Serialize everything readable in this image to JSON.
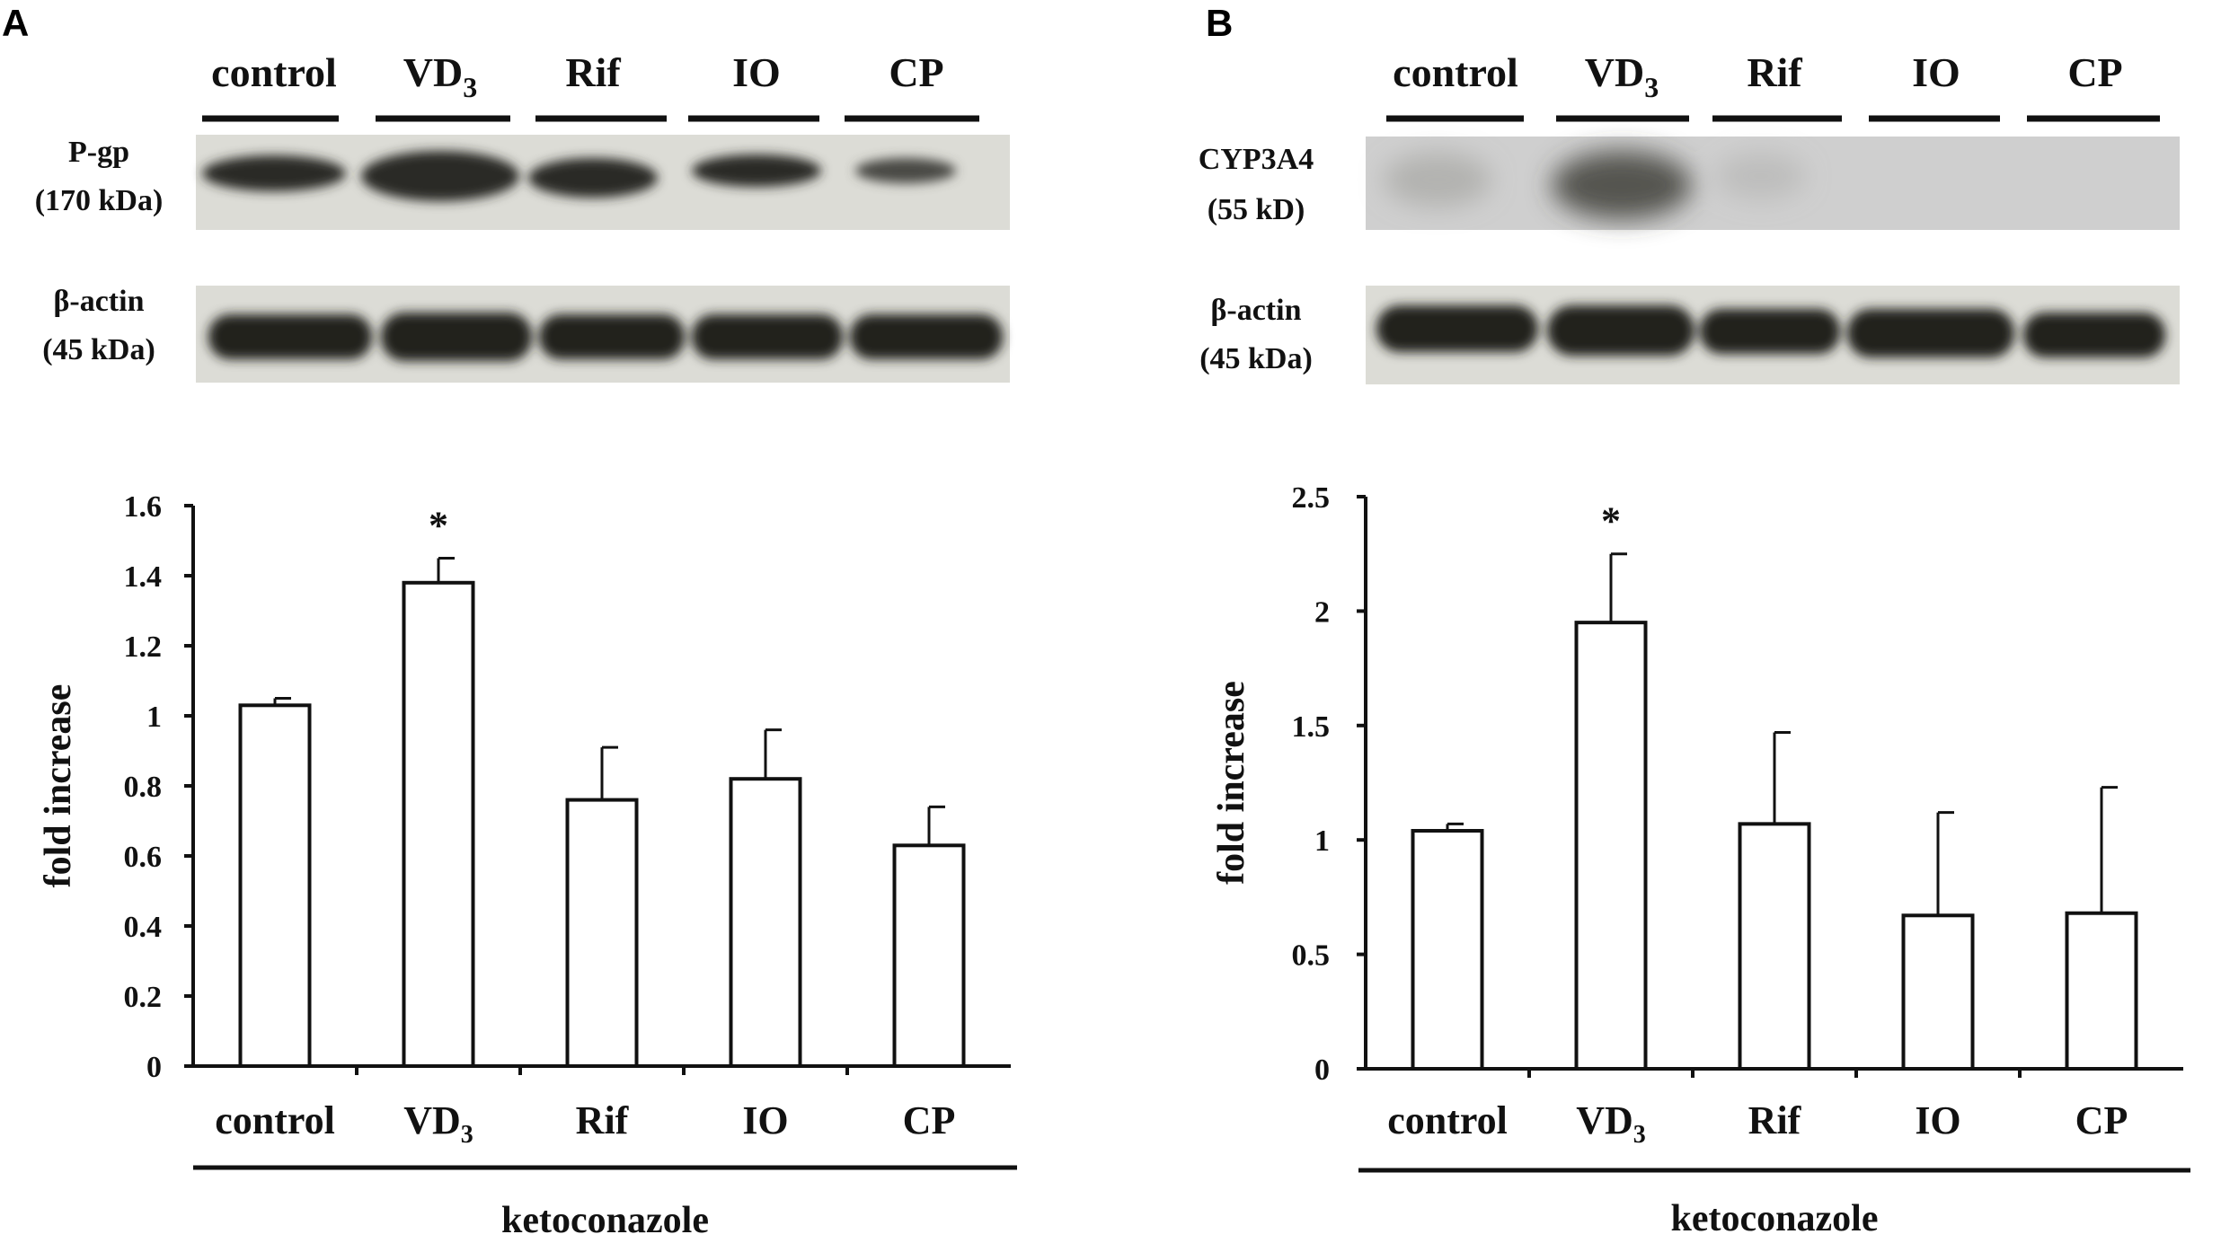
{
  "panels": [
    {
      "id": "A",
      "letter": "A",
      "blot_lanes": [
        "control",
        "VD",
        "Rif",
        "IO",
        "CP"
      ],
      "blot_lane_subscripts": [
        "",
        "3",
        "",
        "",
        ""
      ],
      "target_label_line1": "P-gp",
      "target_label_line2": "(170 kDa)",
      "actin_label_line1": "β-actin",
      "actin_label_line2": "(45 kDa)"
    },
    {
      "id": "B",
      "letter": "B",
      "blot_lanes": [
        "control",
        "VD",
        "Rif",
        "IO",
        "CP"
      ],
      "blot_lane_subscripts": [
        "",
        "3",
        "",
        "",
        ""
      ],
      "target_label_line1": "CYP3A4",
      "target_label_line2": "(55 kD)",
      "actin_label_line1": "β-actin",
      "actin_label_line2": "(45 kDa)"
    }
  ],
  "chart_data": [
    {
      "type": "bar",
      "panel": "A",
      "categories": [
        "control",
        "VD",
        "Rif",
        "IO",
        "CP"
      ],
      "category_subscripts": [
        "",
        "3",
        "",
        "",
        ""
      ],
      "values": [
        1.03,
        1.38,
        0.76,
        0.82,
        0.63
      ],
      "error_upper": [
        0.02,
        0.07,
        0.15,
        0.14,
        0.11
      ],
      "significance": [
        "",
        "*",
        "",
        "",
        ""
      ],
      "ylabel": "fold increase",
      "group_label": "ketoconazole",
      "ylim": [
        0,
        1.6
      ],
      "yticks": [
        "0",
        "0.2",
        "0.4",
        "0.6",
        "0.8",
        "1",
        "1.2",
        "1.4",
        "1.6"
      ],
      "grid": false,
      "bar_color": "#ffffff"
    },
    {
      "type": "bar",
      "panel": "B",
      "categories": [
        "control",
        "VD",
        "Rif",
        "IO",
        "CP"
      ],
      "category_subscripts": [
        "",
        "3",
        "",
        "",
        ""
      ],
      "values": [
        1.04,
        1.95,
        1.07,
        0.67,
        0.68
      ],
      "error_upper": [
        0.03,
        0.3,
        0.4,
        0.45,
        0.55
      ],
      "significance": [
        "",
        "*",
        "",
        "",
        ""
      ],
      "ylabel": "fold increase",
      "group_label": "ketoconazole",
      "ylim": [
        0,
        2.5
      ],
      "yticks": [
        "0",
        "0.5",
        "1",
        "1.5",
        "2",
        "2.5"
      ],
      "grid": false,
      "bar_color": "#ffffff"
    }
  ]
}
